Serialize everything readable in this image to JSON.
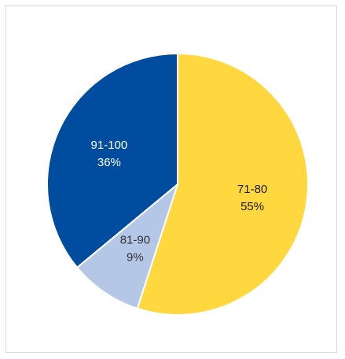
{
  "chart_data": {
    "type": "pie",
    "title": "",
    "start_angle_deg": 0,
    "direction": "clockwise",
    "slices": [
      {
        "label": "71-80",
        "value": 55,
        "value_label": "55%",
        "color": "#FFD83F",
        "text_color": "#1a1a1a"
      },
      {
        "label": "81-90",
        "value": 9,
        "value_label": "9%",
        "color": "#B4C7E7",
        "text_color": "#333333"
      },
      {
        "label": "91-100",
        "value": 36,
        "value_label": "36%",
        "color": "#004C9E",
        "text_color": "#ffffff"
      }
    ]
  }
}
